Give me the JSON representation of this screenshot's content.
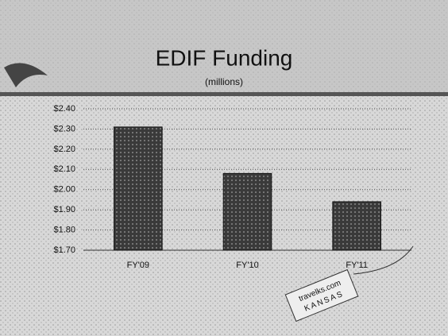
{
  "chart_data": {
    "type": "bar",
    "title": "EDIF Funding",
    "subtitle": "(millions)",
    "categories": [
      "FY'09",
      "FY'10",
      "FY'11"
    ],
    "values": [
      2.31,
      2.08,
      1.94
    ],
    "color": "#3a3a3a",
    "ylim": [
      1.7,
      2.4
    ],
    "yticks": [
      {
        "value": 1.7,
        "label": "$1.70"
      },
      {
        "value": 1.8,
        "label": "$1.80"
      },
      {
        "value": 1.9,
        "label": "$1.90"
      },
      {
        "value": 2.0,
        "label": "$2.00"
      },
      {
        "value": 2.1,
        "label": "$2.10"
      },
      {
        "value": 2.2,
        "label": "$2.20"
      },
      {
        "value": 2.3,
        "label": "$2.30"
      },
      {
        "value": 2.4,
        "label": "$2.40"
      }
    ],
    "grid": true
  },
  "badge": {
    "text": "travelks.com",
    "subtext": "KANSAS"
  }
}
